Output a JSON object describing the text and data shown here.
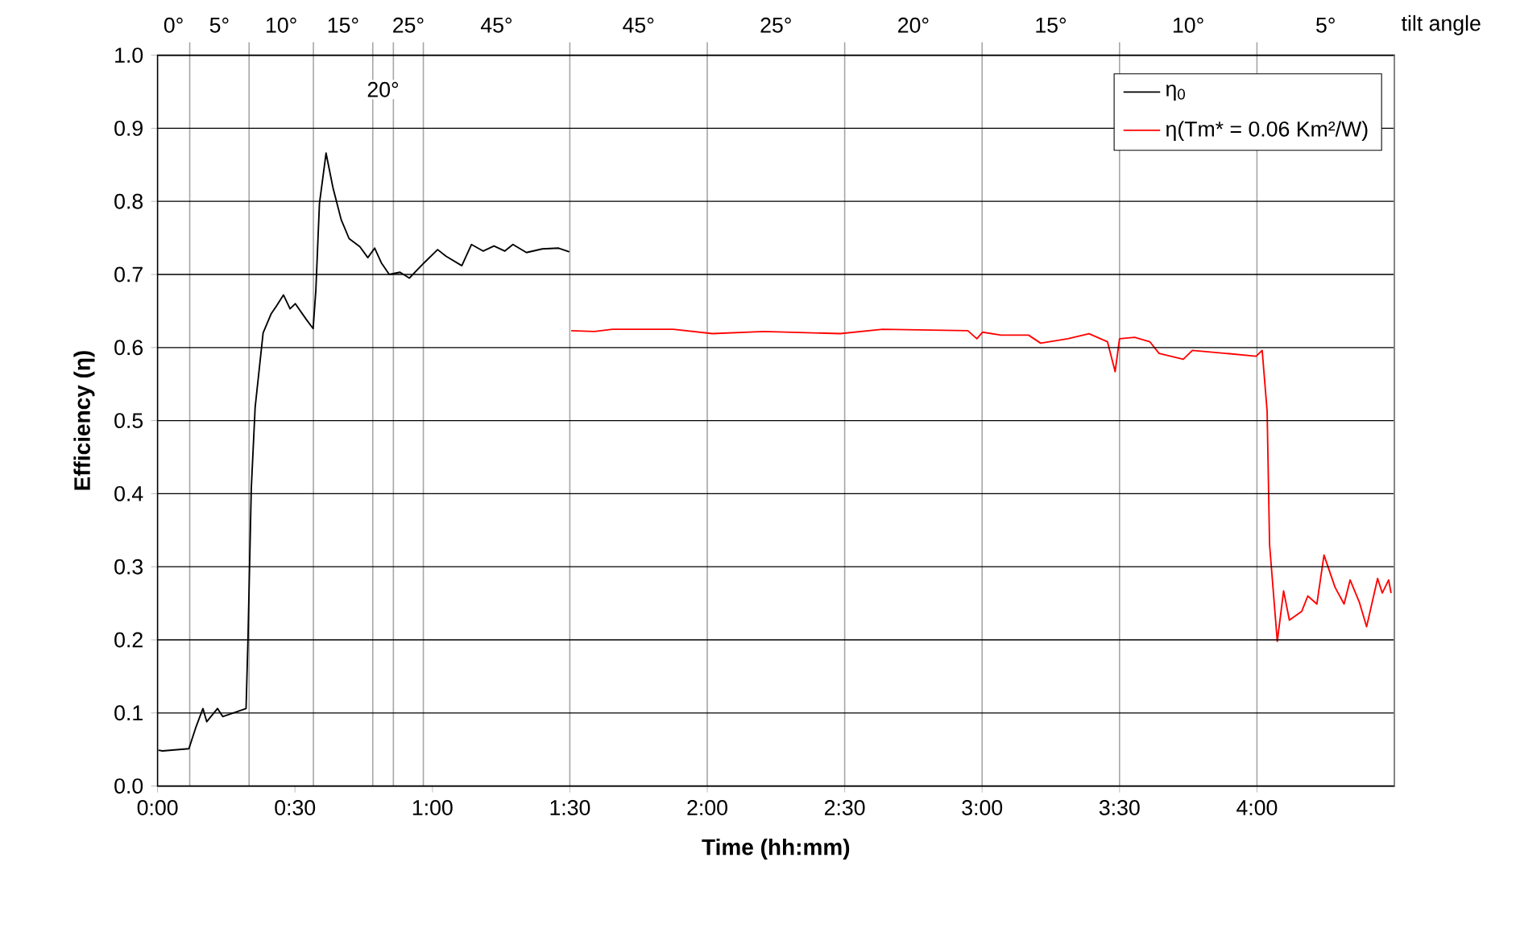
{
  "chart_data": {
    "type": "line",
    "xlabel": "Time (hh:mm)",
    "ylabel": "Efficiency (η)",
    "annotations": [
      "0°",
      "5°",
      "10°",
      "15°",
      "20°",
      "25°",
      "45°",
      "45°",
      "25°",
      "20°",
      "15°",
      "10°",
      "5°",
      "tilt angle"
    ],
    "xlim": [
      0,
      4.5
    ],
    "ylim": [
      0,
      1
    ],
    "xticks": [
      {
        "value": 0,
        "label": "0:00"
      },
      {
        "value": 0.5,
        "label": "0:30"
      },
      {
        "value": 1,
        "label": "1:00"
      },
      {
        "value": 1.5,
        "label": "1:30"
      },
      {
        "value": 2,
        "label": "2:00"
      },
      {
        "value": 2.5,
        "label": "2:30"
      },
      {
        "value": 3,
        "label": "3:00"
      },
      {
        "value": 3.5,
        "label": "3:30"
      },
      {
        "value": 4,
        "label": "4:00"
      }
    ],
    "yticks": [
      {
        "value": 0,
        "label": "0.0"
      },
      {
        "value": 0.1,
        "label": "0.1"
      },
      {
        "value": 0.2,
        "label": "0.2"
      },
      {
        "value": 0.3,
        "label": "0.3"
      },
      {
        "value": 0.4,
        "label": "0.4"
      },
      {
        "value": 0.5,
        "label": "0.5"
      },
      {
        "value": 0.6,
        "label": "0.6"
      },
      {
        "value": 0.7,
        "label": "0.7"
      },
      {
        "value": 0.8,
        "label": "0.8"
      },
      {
        "value": 0.9,
        "label": "0.9"
      },
      {
        "value": 1,
        "label": "1.0"
      }
    ],
    "grid": "y",
    "legend": "top right",
    "marker": "none",
    "line_style": "solid",
    "ref_lines": [
      {
        "axis": "x",
        "value": 0.117,
        "color": "#a6a6a6"
      },
      {
        "axis": "x",
        "value": 0.333,
        "color": "#a6a6a6"
      },
      {
        "axis": "x",
        "value": 0.567,
        "color": "#a6a6a6"
      },
      {
        "axis": "x",
        "value": 0.783,
        "color": "#a6a6a6"
      },
      {
        "axis": "x",
        "value": 0.858,
        "color": "#a6a6a6"
      },
      {
        "axis": "x",
        "value": 0.967,
        "color": "#a6a6a6"
      },
      {
        "axis": "x",
        "value": 1.5,
        "color": "#a6a6a6"
      },
      {
        "axis": "x",
        "value": 2.0,
        "color": "#a6a6a6"
      },
      {
        "axis": "x",
        "value": 2.5,
        "color": "#a6a6a6"
      },
      {
        "axis": "x",
        "value": 3.0,
        "color": "#a6a6a6"
      },
      {
        "axis": "x",
        "value": 3.5,
        "color": "#a6a6a6"
      },
      {
        "axis": "x",
        "value": 4.0,
        "color": "#a6a6a6"
      }
    ],
    "series": [
      {
        "name": "η$_{0}$",
        "color": "#000000",
        "x": [
          0.003,
          0.018,
          0.114,
          0.14,
          0.165,
          0.179,
          0.218,
          0.237,
          0.322,
          0.329,
          0.341,
          0.355,
          0.384,
          0.413,
          0.433,
          0.458,
          0.482,
          0.501,
          0.54,
          0.566,
          0.576,
          0.589,
          0.613,
          0.638,
          0.668,
          0.697,
          0.736,
          0.765,
          0.79,
          0.814,
          0.843,
          0.882,
          0.916,
          0.97,
          1.019,
          1.049,
          1.107,
          1.142,
          1.185,
          1.224,
          1.263,
          1.293,
          1.342,
          1.4,
          1.459,
          1.498
        ],
        "values": [
          0.049,
          0.048,
          0.051,
          0.081,
          0.106,
          0.088,
          0.106,
          0.095,
          0.106,
          0.202,
          0.407,
          0.518,
          0.62,
          0.646,
          0.657,
          0.672,
          0.653,
          0.66,
          0.639,
          0.626,
          0.679,
          0.797,
          0.866,
          0.819,
          0.775,
          0.749,
          0.738,
          0.723,
          0.736,
          0.716,
          0.7,
          0.703,
          0.695,
          0.716,
          0.734,
          0.725,
          0.712,
          0.741,
          0.732,
          0.739,
          0.732,
          0.741,
          0.73,
          0.735,
          0.736,
          0.731
        ]
      },
      {
        "name": "η(Tm* = 0.06 Km²/W)",
        "color": "#ff0000",
        "x": [
          1.505,
          1.589,
          1.655,
          1.876,
          2.019,
          2.207,
          2.484,
          2.638,
          2.948,
          2.981,
          3.002,
          3.069,
          3.169,
          3.213,
          3.312,
          3.389,
          3.456,
          3.484,
          3.5,
          3.555,
          3.61,
          3.644,
          3.732,
          3.765,
          3.887,
          3.997,
          4.019,
          4.037,
          4.046,
          4.074,
          4.097,
          4.118,
          4.163,
          4.185,
          4.218,
          4.244,
          4.284,
          4.317,
          4.339,
          4.373,
          4.399,
          4.439,
          4.456,
          4.479,
          4.488
        ],
        "values": [
          0.623,
          0.622,
          0.625,
          0.625,
          0.619,
          0.622,
          0.619,
          0.625,
          0.623,
          0.612,
          0.621,
          0.617,
          0.617,
          0.606,
          0.612,
          0.619,
          0.608,
          0.567,
          0.612,
          0.614,
          0.608,
          0.592,
          0.584,
          0.596,
          0.592,
          0.588,
          0.596,
          0.513,
          0.33,
          0.198,
          0.267,
          0.227,
          0.239,
          0.26,
          0.249,
          0.316,
          0.272,
          0.249,
          0.282,
          0.251,
          0.218,
          0.284,
          0.264,
          0.282,
          0.264
        ]
      }
    ]
  }
}
